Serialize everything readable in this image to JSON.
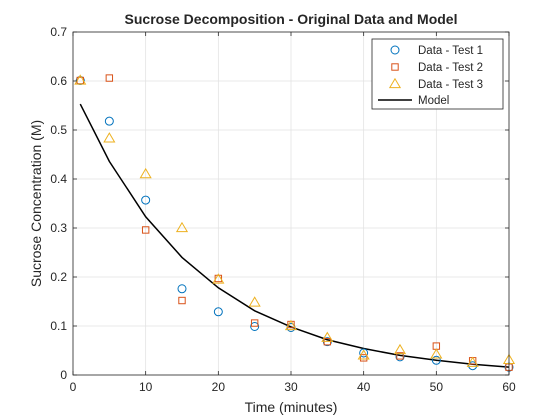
{
  "chart_data": {
    "type": "scatter",
    "title": "Sucrose Decomposition - Original Data and Model",
    "xlabel": "Time (minutes)",
    "ylabel": "Sucrose Concentration (M)",
    "xlim": [
      0,
      60
    ],
    "ylim": [
      0,
      0.7
    ],
    "grid": true,
    "legend_position": "top-right",
    "x_ticks": [
      "0",
      "10",
      "20",
      "30",
      "40",
      "50",
      "60"
    ],
    "y_ticks": [
      "0",
      "0.1",
      "0.2",
      "0.3",
      "0.4",
      "0.5",
      "0.6",
      "0.7"
    ],
    "series": [
      {
        "name": "Data - Test 1",
        "marker": "circle",
        "color": "#0072BD",
        "x": [
          1,
          5,
          10,
          15,
          20,
          25,
          30,
          35,
          40,
          45,
          50,
          55,
          60
        ],
        "y": [
          0.601,
          0.518,
          0.357,
          0.176,
          0.129,
          0.099,
          0.097,
          0.068,
          0.045,
          0.037,
          0.03,
          0.019,
          0.016
        ]
      },
      {
        "name": "Data - Test 2",
        "marker": "square",
        "color": "#D95319",
        "x": [
          1,
          5,
          10,
          15,
          20,
          25,
          30,
          35,
          40,
          45,
          50,
          55,
          60
        ],
        "y": [
          0.601,
          0.606,
          0.296,
          0.152,
          0.197,
          0.106,
          0.103,
          0.068,
          0.035,
          0.039,
          0.059,
          0.029,
          0.016
        ]
      },
      {
        "name": "Data - Test 3",
        "marker": "triangle",
        "color": "#EDB120",
        "x": [
          1,
          5,
          10,
          15,
          20,
          25,
          30,
          35,
          40,
          45,
          50,
          55,
          60
        ],
        "y": [
          0.601,
          0.483,
          0.41,
          0.3,
          0.195,
          0.148,
          0.1,
          0.076,
          0.04,
          0.051,
          0.042,
          0.025,
          0.031
        ]
      },
      {
        "name": "Model",
        "marker": "line",
        "color": "#000000",
        "x": [
          1,
          5,
          10,
          15,
          20,
          25,
          30,
          35,
          40,
          45,
          50,
          55,
          60
        ],
        "y": [
          0.553,
          0.436,
          0.323,
          0.24,
          0.178,
          0.131,
          0.098,
          0.072,
          0.054,
          0.04,
          0.03,
          0.022,
          0.016
        ]
      }
    ]
  }
}
